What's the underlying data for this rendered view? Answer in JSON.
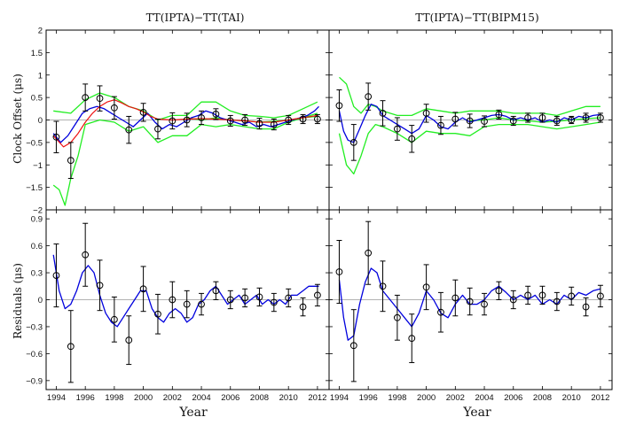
{
  "chart_data": {
    "type": "line",
    "xlabel": "Year",
    "xlim": [
      1993.3,
      2012.8
    ],
    "xticks": [
      1994,
      1996,
      1998,
      2000,
      2002,
      2004,
      2006,
      2008,
      2010,
      2012
    ],
    "colors": {
      "measured": "#000000",
      "model": "#0000dd",
      "uncertainty": "#22ee22",
      "reference": "#ee1111",
      "zero": "#999999",
      "frame": "#000000"
    },
    "panels": [
      {
        "id": "tai-offset",
        "title": "TT(IPTA)−TT(TAI)",
        "ylabel": "Clock Offset (μs)",
        "ylim": [
          -2,
          2
        ],
        "yticks": [
          "2",
          "1.5",
          "1",
          "0.5",
          "0",
          "−0.5",
          "−1",
          "−1.5",
          "−2"
        ],
        "series": [
          {
            "name": "Upper bound",
            "role": "uncertainty",
            "x": [
              1993.8,
              1995,
              1996,
              1997,
              1997.5,
              1998,
              1999,
              2000,
              2001,
              2002,
              2003,
              2004,
              2005,
              2006,
              2007,
              2008,
              2009,
              2010,
              2011,
              2012
            ],
            "y": [
              0.2,
              0.15,
              0.45,
              0.6,
              0.55,
              0.5,
              0.3,
              0.2,
              0.0,
              0.1,
              0.1,
              0.4,
              0.4,
              0.2,
              0.1,
              0.08,
              0.05,
              0.1,
              0.25,
              0.4
            ]
          },
          {
            "name": "Lower bound",
            "role": "uncertainty",
            "x": [
              1993.8,
              1994.2,
              1994.6,
              1995,
              1995.5,
              1996,
              1997,
              1998,
              1999,
              2000,
              2001,
              2002,
              2003,
              2004,
              2005,
              2006,
              2007,
              2008,
              2009,
              2010,
              2011,
              2012
            ],
            "y": [
              -1.45,
              -1.55,
              -1.9,
              -1.3,
              -0.8,
              -0.1,
              0.0,
              -0.05,
              -0.25,
              -0.15,
              -0.5,
              -0.35,
              -0.35,
              -0.1,
              -0.15,
              -0.1,
              -0.15,
              -0.2,
              -0.2,
              -0.05,
              0.05,
              0.15
            ]
          },
          {
            "name": "Zero-centred band",
            "role": "uncertainty",
            "x": [
              2003,
              2004,
              2005,
              2006,
              2007,
              2008,
              2009,
              2010,
              2011,
              2012
            ],
            "y": [
              0.05,
              0.0,
              0.05,
              0.0,
              -0.02,
              -0.05,
              -0.03,
              0.0,
              0.05,
              0.08
            ]
          },
          {
            "name": "Estimate",
            "role": "model",
            "x": [
              1993.8,
              1994.3,
              1994.8,
              1995.3,
              1995.8,
              1996.3,
              1996.8,
              1997.3,
              1997.8,
              1998.3,
              1998.8,
              1999.3,
              1999.8,
              2000.3,
              2000.8,
              2001.3,
              2001.8,
              2002.3,
              2002.8,
              2003.3,
              2003.8,
              2004.3,
              2004.8,
              2005.3,
              2005.8,
              2006.3,
              2006.8,
              2007.3,
              2007.8,
              2008.3,
              2008.8,
              2009.3,
              2009.8,
              2010.3,
              2010.8,
              2011.3,
              2011.8,
              2012.1
            ],
            "y": [
              -0.3,
              -0.5,
              -0.35,
              -0.1,
              0.15,
              0.25,
              0.3,
              0.25,
              0.15,
              0.05,
              -0.05,
              -0.15,
              0.0,
              0.15,
              -0.05,
              -0.2,
              -0.1,
              -0.15,
              -0.05,
              0.05,
              0.1,
              0.2,
              0.15,
              0.05,
              0.0,
              -0.05,
              -0.1,
              -0.05,
              -0.15,
              -0.1,
              -0.15,
              -0.1,
              -0.05,
              0.0,
              0.05,
              0.1,
              0.2,
              0.3
            ]
          },
          {
            "name": "Reference",
            "role": "reference",
            "x": [
              1993.8,
              1994.5,
              1995,
              1995.5,
              1996,
              1996.5,
              1997,
              1997.5,
              1998,
              1998.5,
              1999,
              1999.5,
              2000,
              2000.5,
              2001,
              2002,
              2003,
              2004,
              2005,
              2006,
              2007,
              2008,
              2009,
              2010,
              2011,
              2012
            ],
            "y": [
              -0.35,
              -0.6,
              -0.5,
              -0.3,
              -0.05,
              0.15,
              0.3,
              0.4,
              0.45,
              0.38,
              0.3,
              0.25,
              0.18,
              0.08,
              0.02,
              0.0,
              0.02,
              0.03,
              0.02,
              0.0,
              -0.02,
              -0.05,
              -0.05,
              0.0,
              0.05,
              0.1
            ]
          }
        ],
        "points": {
          "x": [
            1994,
            1995,
            1996,
            1997,
            1998,
            1999,
            2000,
            2001,
            2002,
            2003,
            2004,
            2005,
            2006,
            2007,
            2008,
            2009,
            2010,
            2011,
            2012
          ],
          "y": [
            -0.38,
            -0.9,
            0.5,
            0.48,
            0.27,
            -0.22,
            0.17,
            -0.2,
            -0.02,
            0.0,
            0.05,
            0.13,
            -0.02,
            0.0,
            -0.08,
            -0.1,
            0.0,
            0.02,
            0.02
          ],
          "err": [
            0.35,
            0.4,
            0.3,
            0.28,
            0.25,
            0.3,
            0.2,
            0.22,
            0.18,
            0.15,
            0.15,
            0.12,
            0.12,
            0.12,
            0.12,
            0.12,
            0.1,
            0.1,
            0.1
          ]
        }
      },
      {
        "id": "bipm-offset",
        "title": "TT(IPTA)−TT(BIPM15)",
        "ylim": [
          -2,
          2
        ],
        "series": [
          {
            "name": "Upper bound",
            "role": "uncertainty",
            "x": [
              1994,
              1994.5,
              1995,
              1995.5,
              1996,
              1996.5,
              1997,
              1998,
              1999,
              2000,
              2001,
              2002,
              2003,
              2004,
              2005,
              2006,
              2007,
              2008,
              2009,
              2010,
              2011,
              2012
            ],
            "y": [
              0.95,
              0.8,
              0.3,
              0.15,
              0.35,
              0.3,
              0.2,
              0.1,
              0.1,
              0.25,
              0.2,
              0.15,
              0.2,
              0.2,
              0.2,
              0.15,
              0.15,
              0.15,
              0.1,
              0.2,
              0.3,
              0.3
            ]
          },
          {
            "name": "Lower bound",
            "role": "uncertainty",
            "x": [
              1994,
              1994.5,
              1995,
              1995.5,
              1996,
              1996.5,
              1997,
              1998,
              1999,
              2000,
              2001,
              2002,
              2003,
              2004,
              2005,
              2006,
              2007,
              2008,
              2009,
              2010,
              2011,
              2012
            ],
            "y": [
              -0.3,
              -1.0,
              -1.2,
              -0.8,
              -0.3,
              -0.1,
              -0.15,
              -0.3,
              -0.5,
              -0.25,
              -0.3,
              -0.3,
              -0.35,
              -0.15,
              -0.1,
              -0.1,
              -0.1,
              -0.15,
              -0.2,
              -0.15,
              -0.1,
              -0.05
            ]
          },
          {
            "name": "Zero-centred band",
            "role": "uncertainty",
            "x": [
              2003,
              2004,
              2005,
              2006,
              2007,
              2008,
              2009,
              2010,
              2011,
              2012
            ],
            "y": [
              -0.02,
              0.0,
              0.05,
              0.0,
              -0.02,
              -0.05,
              -0.03,
              0.0,
              0.03,
              0.05
            ]
          },
          {
            "name": "Estimate",
            "role": "model",
            "x": [
              1994,
              1994.3,
              1994.6,
              1995,
              1995.4,
              1995.8,
              1996.2,
              1996.6,
              1997,
              1997.5,
              1998,
              1998.5,
              1999,
              1999.5,
              2000,
              2000.5,
              2001,
              2001.5,
              2002,
              2002.5,
              2003,
              2003.5,
              2004,
              2004.5,
              2005,
              2005.5,
              2006,
              2006.5,
              2007,
              2007.5,
              2008,
              2008.5,
              2009,
              2009.5,
              2010,
              2010.5,
              2011,
              2011.5,
              2012
            ],
            "y": [
              0.2,
              -0.25,
              -0.45,
              -0.5,
              -0.2,
              0.1,
              0.35,
              0.3,
              0.1,
              0.0,
              -0.1,
              -0.2,
              -0.3,
              -0.2,
              0.1,
              0.0,
              -0.15,
              -0.2,
              -0.05,
              0.05,
              -0.05,
              0.0,
              0.05,
              0.1,
              0.12,
              0.08,
              0.0,
              0.05,
              0.0,
              0.05,
              -0.05,
              0.0,
              -0.05,
              0.05,
              0.0,
              0.08,
              0.05,
              0.1,
              0.12
            ]
          }
        ],
        "points": {
          "x": [
            1994,
            1995,
            1996,
            1997,
            1998,
            1999,
            2000,
            2001,
            2002,
            2003,
            2004,
            2005,
            2006,
            2007,
            2008,
            2009,
            2010,
            2011,
            2012
          ],
          "y": [
            0.32,
            -0.5,
            0.52,
            0.15,
            -0.2,
            -0.42,
            0.15,
            -0.12,
            0.02,
            -0.02,
            -0.03,
            0.12,
            -0.02,
            0.05,
            0.05,
            -0.02,
            0.0,
            0.05,
            0.05
          ],
          "err": [
            0.35,
            0.4,
            0.3,
            0.28,
            0.25,
            0.3,
            0.2,
            0.2,
            0.15,
            0.15,
            0.12,
            0.1,
            0.1,
            0.1,
            0.1,
            0.1,
            0.08,
            0.1,
            0.1
          ]
        }
      },
      {
        "id": "tai-residuals",
        "ylabel": "Residuals (μs)",
        "ylim": [
          -1.0,
          1.0
        ],
        "yticks": [
          "0.9",
          "0.6",
          "0.3",
          "0",
          "−0.3",
          "−0.6",
          "−0.9"
        ],
        "series": [
          {
            "name": "Model",
            "role": "model",
            "x": [
              1993.8,
              1994.2,
              1994.6,
              1995,
              1995.4,
              1995.8,
              1996.2,
              1996.6,
              1997,
              1997.4,
              1997.8,
              1998.2,
              1998.6,
              1999,
              1999.4,
              1999.8,
              2000.2,
              2000.6,
              2001,
              2001.4,
              2001.8,
              2002.2,
              2002.6,
              2003,
              2003.4,
              2003.8,
              2004.2,
              2004.6,
              2005,
              2005.4,
              2005.8,
              2006.2,
              2006.6,
              2007,
              2007.4,
              2007.8,
              2008.2,
              2008.6,
              2009,
              2009.4,
              2009.8,
              2010.2,
              2010.6,
              2011,
              2011.4,
              2011.8,
              2012.1
            ],
            "y": [
              0.5,
              0.1,
              -0.1,
              -0.05,
              0.1,
              0.3,
              0.38,
              0.3,
              0.05,
              -0.15,
              -0.25,
              -0.3,
              -0.2,
              -0.1,
              0.0,
              0.1,
              0.1,
              -0.1,
              -0.2,
              -0.25,
              -0.15,
              -0.1,
              -0.15,
              -0.25,
              -0.2,
              -0.05,
              0.0,
              0.1,
              0.15,
              0.05,
              -0.05,
              0.0,
              0.05,
              -0.05,
              0.0,
              0.05,
              -0.05,
              0.0,
              -0.05,
              0.0,
              -0.05,
              0.05,
              0.05,
              0.1,
              0.15,
              0.15,
              0.15
            ]
          }
        ],
        "points": {
          "x": [
            1994,
            1995,
            1996,
            1997,
            1998,
            1999,
            2000,
            2001,
            2002,
            2003,
            2004,
            2005,
            2006,
            2007,
            2008,
            2009,
            2010,
            2011,
            2012
          ],
          "y": [
            0.27,
            -0.52,
            0.5,
            0.16,
            -0.22,
            -0.45,
            0.12,
            -0.16,
            0.0,
            -0.05,
            -0.05,
            0.1,
            0.0,
            0.02,
            0.03,
            -0.03,
            0.02,
            -0.08,
            0.05
          ],
          "err": [
            0.35,
            0.4,
            0.35,
            0.28,
            0.25,
            0.27,
            0.25,
            0.22,
            0.2,
            0.15,
            0.12,
            0.1,
            0.1,
            0.1,
            0.1,
            0.1,
            0.1,
            0.1,
            0.12
          ]
        }
      },
      {
        "id": "bipm-residuals",
        "ylim": [
          -1.0,
          1.0
        ],
        "series": [
          {
            "name": "Model",
            "role": "model",
            "x": [
              1994,
              1994.3,
              1994.6,
              1995,
              1995.4,
              1995.8,
              1996.2,
              1996.6,
              1997,
              1997.5,
              1998,
              1998.5,
              1999,
              1999.5,
              2000,
              2000.5,
              2001,
              2001.5,
              2002,
              2002.5,
              2003,
              2003.5,
              2004,
              2004.5,
              2005,
              2005.5,
              2006,
              2006.5,
              2007,
              2007.5,
              2008,
              2008.5,
              2009,
              2009.5,
              2010,
              2010.5,
              2011,
              2011.5,
              2012
            ],
            "y": [
              0.22,
              -0.2,
              -0.45,
              -0.4,
              -0.05,
              0.2,
              0.35,
              0.3,
              0.1,
              0.0,
              -0.1,
              -0.2,
              -0.3,
              -0.15,
              0.1,
              0.0,
              -0.15,
              -0.2,
              -0.05,
              0.05,
              -0.05,
              -0.05,
              0.0,
              0.1,
              0.15,
              0.08,
              0.0,
              0.05,
              0.0,
              0.05,
              -0.05,
              0.0,
              -0.05,
              0.05,
              0.0,
              0.08,
              0.05,
              0.1,
              0.12
            ]
          }
        ],
        "points": {
          "x": [
            1994,
            1995,
            1996,
            1997,
            1998,
            1999,
            2000,
            2001,
            2002,
            2003,
            2004,
            2005,
            2006,
            2007,
            2008,
            2009,
            2010,
            2011,
            2012
          ],
          "y": [
            0.31,
            -0.51,
            0.52,
            0.15,
            -0.2,
            -0.43,
            0.14,
            -0.14,
            0.02,
            -0.02,
            -0.05,
            0.1,
            0.0,
            0.05,
            0.05,
            -0.02,
            0.04,
            -0.08,
            0.04
          ],
          "err": [
            0.35,
            0.4,
            0.35,
            0.28,
            0.25,
            0.27,
            0.25,
            0.22,
            0.2,
            0.15,
            0.12,
            0.1,
            0.1,
            0.1,
            0.1,
            0.1,
            0.1,
            0.1,
            0.12
          ]
        }
      }
    ]
  }
}
